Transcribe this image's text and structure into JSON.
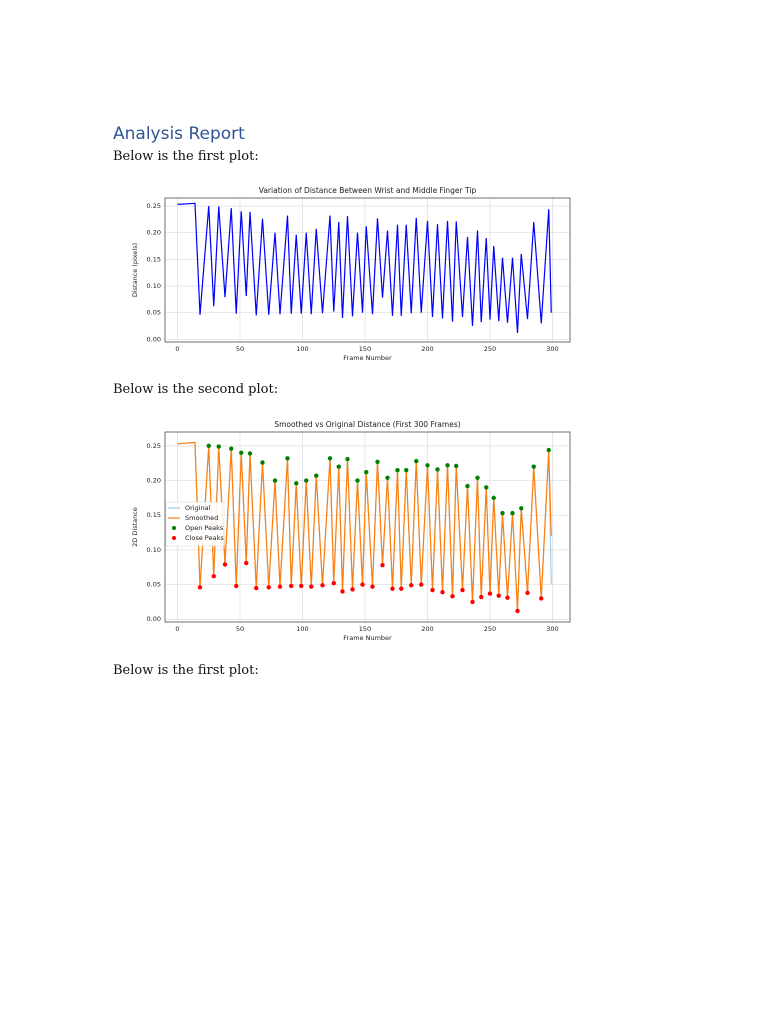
{
  "document": {
    "heading": "Analysis Report",
    "paragraphs": [
      "Below is the first plot:",
      "Below is the second plot:",
      "Below is the first plot:"
    ]
  },
  "chart_data": [
    {
      "type": "line",
      "title": "Variation of Distance Between Wrist and Middle Finger Tip",
      "xlabel": "Frame Number",
      "ylabel": "Distance (pixels)",
      "xlim": [
        -10,
        314
      ],
      "ylim": [
        -0.005,
        0.265
      ],
      "grid": true,
      "xticks": [
        0,
        50,
        100,
        150,
        200,
        250,
        300
      ],
      "yticks": [
        {
          "value": 0,
          "label": "0.00"
        },
        0.05,
        {
          "value": 0.1,
          "label": "0.10"
        },
        0.15,
        {
          "value": 0.2,
          "label": "0.20"
        },
        0.25
      ],
      "series": [
        {
          "name": null,
          "color": "#0000ff",
          "style": "line",
          "x": [
            0,
            14,
            18,
            25,
            29,
            33,
            38,
            43,
            47,
            51,
            55,
            58,
            63,
            68,
            73,
            78,
            82,
            88,
            91,
            95,
            99,
            103,
            107,
            111,
            116,
            122,
            125,
            129,
            132,
            136,
            140,
            144,
            148,
            151,
            156,
            160,
            164,
            168,
            172,
            176,
            179,
            183,
            187,
            191,
            195,
            200,
            204,
            208,
            212,
            216,
            220,
            223,
            228,
            232,
            236,
            240,
            243,
            247,
            250,
            253,
            257,
            260,
            264,
            268,
            272,
            275,
            280,
            285,
            291,
            297,
            299
          ],
          "values": [
            0.253,
            0.255,
            0.046,
            0.25,
            0.062,
            0.249,
            0.079,
            0.246,
            0.048,
            0.24,
            0.081,
            0.239,
            0.045,
            0.226,
            0.046,
            0.2,
            0.047,
            0.232,
            0.048,
            0.196,
            0.048,
            0.2,
            0.047,
            0.207,
            0.049,
            0.232,
            0.052,
            0.22,
            0.04,
            0.231,
            0.043,
            0.2,
            0.05,
            0.212,
            0.047,
            0.227,
            0.078,
            0.204,
            0.044,
            0.215,
            0.044,
            0.215,
            0.049,
            0.228,
            0.05,
            0.222,
            0.042,
            0.216,
            0.039,
            0.222,
            0.033,
            0.221,
            0.042,
            0.192,
            0.025,
            0.204,
            0.032,
            0.19,
            0.037,
            0.175,
            0.034,
            0.153,
            0.031,
            0.153,
            0.012,
            0.16,
            0.038,
            0.22,
            0.03,
            0.244,
            0.05
          ]
        }
      ]
    },
    {
      "type": "line",
      "title": "Smoothed vs Original Distance (First 300 Frames)",
      "xlabel": "Frame Number",
      "ylabel": "2D Distance",
      "xlim": [
        -10,
        314
      ],
      "ylim": [
        -0.004,
        0.27
      ],
      "grid": true,
      "legend": "left",
      "xticks": [
        0,
        50,
        100,
        150,
        200,
        250,
        300
      ],
      "yticks": [
        {
          "value": 0,
          "label": "0.00"
        },
        0.05,
        {
          "value": 0.1,
          "label": "0.10"
        },
        0.15,
        {
          "value": 0.2,
          "label": "0.20"
        },
        0.25
      ],
      "series": [
        {
          "name": "Original",
          "color": "#a6cde8",
          "style": "line",
          "x": [
            0,
            14,
            18,
            25,
            29,
            33,
            38,
            43,
            47,
            51,
            55,
            58,
            63,
            68,
            73,
            78,
            82,
            88,
            91,
            95,
            99,
            103,
            107,
            111,
            116,
            122,
            125,
            129,
            132,
            136,
            140,
            144,
            148,
            151,
            156,
            160,
            164,
            168,
            172,
            176,
            179,
            183,
            187,
            191,
            195,
            200,
            204,
            208,
            212,
            216,
            220,
            223,
            228,
            232,
            236,
            240,
            243,
            247,
            250,
            253,
            257,
            260,
            264,
            268,
            272,
            275,
            280,
            285,
            291,
            297,
            299
          ],
          "values": [
            0.253,
            0.255,
            0.046,
            0.25,
            0.062,
            0.249,
            0.079,
            0.246,
            0.048,
            0.24,
            0.081,
            0.239,
            0.045,
            0.226,
            0.046,
            0.2,
            0.047,
            0.232,
            0.048,
            0.196,
            0.048,
            0.2,
            0.047,
            0.207,
            0.049,
            0.232,
            0.052,
            0.22,
            0.04,
            0.231,
            0.043,
            0.2,
            0.05,
            0.212,
            0.047,
            0.227,
            0.078,
            0.204,
            0.044,
            0.215,
            0.044,
            0.215,
            0.049,
            0.228,
            0.05,
            0.222,
            0.042,
            0.216,
            0.039,
            0.222,
            0.033,
            0.221,
            0.042,
            0.192,
            0.025,
            0.204,
            0.032,
            0.19,
            0.037,
            0.175,
            0.034,
            0.153,
            0.031,
            0.153,
            0.012,
            0.16,
            0.038,
            0.22,
            0.03,
            0.244,
            0.05
          ]
        },
        {
          "name": "Smoothed",
          "color": "#ff7f0e",
          "style": "line",
          "x": [
            0,
            14,
            18,
            25,
            29,
            33,
            38,
            43,
            47,
            51,
            55,
            58,
            63,
            68,
            73,
            78,
            82,
            88,
            91,
            95,
            99,
            103,
            107,
            111,
            116,
            122,
            125,
            129,
            132,
            136,
            140,
            144,
            148,
            151,
            156,
            160,
            164,
            168,
            172,
            176,
            179,
            183,
            187,
            191,
            195,
            200,
            204,
            208,
            212,
            216,
            220,
            223,
            228,
            232,
            236,
            240,
            243,
            247,
            250,
            253,
            257,
            260,
            264,
            268,
            272,
            275,
            280,
            285,
            291,
            297,
            299
          ],
          "values": [
            0.253,
            0.255,
            0.046,
            0.25,
            0.062,
            0.249,
            0.079,
            0.246,
            0.048,
            0.24,
            0.081,
            0.239,
            0.045,
            0.226,
            0.046,
            0.2,
            0.047,
            0.232,
            0.048,
            0.196,
            0.048,
            0.2,
            0.047,
            0.207,
            0.049,
            0.232,
            0.052,
            0.22,
            0.04,
            0.231,
            0.043,
            0.2,
            0.05,
            0.212,
            0.047,
            0.227,
            0.078,
            0.204,
            0.044,
            0.215,
            0.044,
            0.215,
            0.049,
            0.228,
            0.05,
            0.222,
            0.042,
            0.216,
            0.039,
            0.222,
            0.033,
            0.221,
            0.042,
            0.192,
            0.025,
            0.204,
            0.032,
            0.19,
            0.037,
            0.175,
            0.034,
            0.153,
            0.031,
            0.153,
            0.012,
            0.16,
            0.038,
            0.22,
            0.03,
            0.244,
            0.12
          ]
        },
        {
          "name": "Open Peaks",
          "color": "#008000",
          "style": "points",
          "x": [
            25,
            33,
            43,
            51,
            58,
            68,
            78,
            88,
            95,
            103,
            111,
            122,
            129,
            136,
            144,
            151,
            160,
            168,
            176,
            183,
            191,
            200,
            208,
            216,
            223,
            232,
            240,
            247,
            253,
            260,
            268,
            275,
            285,
            297
          ],
          "values": [
            0.25,
            0.249,
            0.246,
            0.24,
            0.239,
            0.226,
            0.2,
            0.232,
            0.196,
            0.2,
            0.207,
            0.232,
            0.22,
            0.231,
            0.2,
            0.212,
            0.227,
            0.204,
            0.215,
            0.215,
            0.228,
            0.222,
            0.216,
            0.222,
            0.221,
            0.192,
            0.204,
            0.19,
            0.175,
            0.153,
            0.153,
            0.16,
            0.22,
            0.244
          ]
        },
        {
          "name": "Close Peaks",
          "color": "#ff0000",
          "style": "points",
          "x": [
            18,
            29,
            38,
            47,
            55,
            63,
            73,
            82,
            91,
            99,
            107,
            116,
            125,
            132,
            140,
            148,
            156,
            164,
            172,
            179,
            187,
            195,
            204,
            212,
            220,
            228,
            236,
            243,
            250,
            257,
            264,
            272,
            280,
            291
          ],
          "values": [
            0.046,
            0.062,
            0.079,
            0.048,
            0.081,
            0.045,
            0.046,
            0.047,
            0.048,
            0.048,
            0.047,
            0.049,
            0.052,
            0.04,
            0.043,
            0.05,
            0.047,
            0.078,
            0.044,
            0.044,
            0.049,
            0.05,
            0.042,
            0.039,
            0.033,
            0.042,
            0.025,
            0.032,
            0.037,
            0.034,
            0.031,
            0.012,
            0.038,
            0.03
          ]
        }
      ]
    }
  ]
}
